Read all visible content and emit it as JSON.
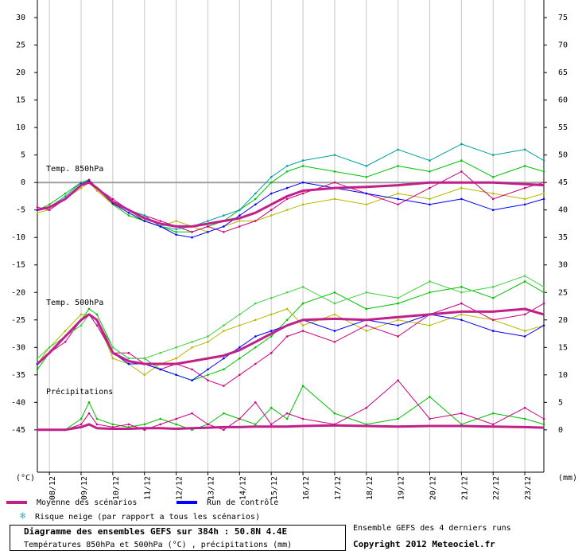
{
  "chart_data": {
    "type": "line",
    "ylabel": "(°C)",
    "y2label": "(mm)",
    "annotations": [
      "Temp. 850hPa",
      "Temp. 500hPa",
      "Précipitations"
    ],
    "xlim": [
      -0.38,
      15.6
    ],
    "xticks": [
      {
        "value": 0,
        "label": "08/12"
      },
      {
        "value": 1,
        "label": "09/12"
      },
      {
        "value": 2,
        "label": "10/12"
      },
      {
        "value": 3,
        "label": "11/12"
      },
      {
        "value": 4,
        "label": "12/12"
      },
      {
        "value": 5,
        "label": "13/12"
      },
      {
        "value": 6,
        "label": "14/12"
      },
      {
        "value": 7,
        "label": "15/12"
      },
      {
        "value": 8,
        "label": "16/12"
      },
      {
        "value": 9,
        "label": "17/12"
      },
      {
        "value": 10,
        "label": "18/12"
      },
      {
        "value": 11,
        "label": "19/12"
      },
      {
        "value": 12,
        "label": "20/12"
      },
      {
        "value": 13,
        "label": "21/12"
      },
      {
        "value": 14,
        "label": "22/12"
      },
      {
        "value": 15,
        "label": "23/12"
      }
    ],
    "ylim": [
      -52.7,
      33.2
    ],
    "yticks": [
      30,
      25,
      20,
      15,
      10,
      5,
      0,
      -5,
      -10,
      -15,
      -20,
      -25,
      -30,
      -35,
      -40,
      -45
    ],
    "y2lim": [
      -7.7,
      78.2
    ],
    "y2ticks": [
      75,
      70,
      65,
      60,
      55,
      50,
      45,
      40,
      35,
      30,
      25,
      20,
      15,
      10,
      5,
      0
    ],
    "reference_lines": [
      0
    ],
    "grid": true,
    "x": [
      -0.38,
      0,
      0.5,
      1,
      1.25,
      1.5,
      2,
      2.5,
      3,
      3.5,
      4,
      4.5,
      5,
      5.5,
      6,
      6.5,
      7,
      7.5,
      8,
      9,
      10,
      11,
      12,
      13,
      14,
      15,
      15.6
    ],
    "series": [
      {
        "color": "#00c000",
        "values": [
          -5,
          -4,
          -2,
          0,
          0.5,
          -1,
          -4,
          -6,
          -7,
          -8,
          -9,
          -9,
          -8,
          -7,
          -5,
          -3,
          0,
          2,
          3,
          2,
          1,
          3,
          2,
          4,
          1,
          3,
          2
        ]
      },
      {
        "color": "#b8b800",
        "values": [
          -5.5,
          -5,
          -3,
          -1,
          0,
          -1.5,
          -4,
          -5,
          -7,
          -8,
          -7,
          -8,
          -9,
          -8,
          -7,
          -7,
          -6,
          -5,
          -4,
          -3,
          -4,
          -2,
          -3,
          -1,
          -2,
          -3,
          -2
        ]
      },
      {
        "color": "#d00080",
        "values": [
          -4.5,
          -5,
          -3,
          -0.5,
          0.5,
          -1,
          -3,
          -5,
          -6,
          -7,
          -8,
          -9,
          -8,
          -9,
          -8,
          -7,
          -5,
          -3,
          -2,
          0,
          -2,
          -4,
          -1,
          2,
          -3,
          -1,
          0
        ]
      },
      {
        "color": "#00a0a0",
        "values": [
          -5,
          -4.5,
          -2.5,
          0,
          0.2,
          -1,
          -3.5,
          -5,
          -6,
          -8,
          -8.5,
          -8,
          -7,
          -6,
          -5,
          -2,
          1,
          3,
          4,
          5,
          3,
          6,
          4,
          7,
          5,
          6,
          4
        ]
      },
      {
        "color": "#00c000",
        "values": [
          -34,
          -31,
          -28,
          -25,
          -23,
          -24,
          -30,
          -32,
          -32,
          -34,
          -35,
          -36,
          -35,
          -34,
          -32,
          -30,
          -28,
          -25,
          -22,
          -20,
          -23,
          -22,
          -20,
          -19,
          -21,
          -18,
          -20
        ]
      },
      {
        "color": "#b8b800",
        "values": [
          -33,
          -30,
          -27,
          -24,
          -24,
          -25,
          -32,
          -33,
          -35,
          -33,
          -32,
          -30,
          -29,
          -27,
          -26,
          -25,
          -24,
          -23,
          -26,
          -24,
          -27,
          -25,
          -26,
          -24,
          -25,
          -27,
          -26
        ]
      },
      {
        "color": "#d00080",
        "values": [
          -33,
          -31,
          -29,
          -25,
          -24,
          -26,
          -31,
          -31,
          -33,
          -34,
          -33,
          -34,
          -36,
          -37,
          -35,
          -33,
          -31,
          -28,
          -27,
          -29,
          -26,
          -28,
          -24,
          -22,
          -25,
          -24,
          -22
        ]
      },
      {
        "color": "#40d040",
        "values": [
          -32,
          -30,
          -28,
          -26,
          -24,
          -25,
          -30,
          -32,
          -32,
          -31,
          -30,
          -29,
          -28,
          -26,
          -24,
          -22,
          -21,
          -20,
          -19,
          -22,
          -20,
          -21,
          -18,
          -20,
          -19,
          -17,
          -19
        ]
      },
      {
        "color": "#00c000",
        "axis": "y2",
        "values": [
          0,
          0,
          0,
          2,
          5,
          2,
          1,
          0.5,
          1,
          2,
          1,
          0,
          1,
          3,
          2,
          1,
          4,
          2,
          8,
          3,
          1,
          2,
          6,
          1,
          3,
          2,
          1
        ]
      },
      {
        "color": "#d00080",
        "axis": "y2",
        "values": [
          0,
          0,
          0,
          1,
          3,
          1,
          0.5,
          1,
          0,
          1,
          2,
          3,
          1,
          0,
          2,
          5,
          1,
          3,
          2,
          1,
          4,
          9,
          2,
          3,
          1,
          4,
          2
        ]
      },
      {
        "name": "Run de contrôle",
        "color": "#0000ff",
        "values": [
          -5,
          -4.5,
          -3,
          -0.3,
          0.2,
          -1,
          -3.8,
          -5.5,
          -7,
          -8,
          -9.5,
          -10,
          -9,
          -8,
          -6,
          -4,
          -2,
          -1,
          0,
          -1,
          -2,
          -3,
          -4,
          -3,
          -5,
          -4,
          -3
        ]
      },
      {
        "color": "#0000ff",
        "values": [
          -33,
          -31,
          -28,
          -25,
          -24,
          -25,
          -31,
          -33,
          -33,
          -34,
          -35,
          -36,
          -34,
          -32,
          -30,
          -28,
          -27,
          -26,
          -25,
          -27,
          -25,
          -26,
          -24,
          -25,
          -27,
          -28,
          -26
        ]
      },
      {
        "name": "Moyenne des scénarios",
        "color": "#c0208a",
        "line_width": 3,
        "values": [
          -5,
          -4.5,
          -3,
          -0.5,
          0,
          -1,
          -3.5,
          -5,
          -6.5,
          -7.5,
          -8,
          -8,
          -7.5,
          -7,
          -6.5,
          -5.5,
          -4,
          -2.5,
          -1.5,
          -1,
          -0.8,
          -0.5,
          0,
          0,
          0,
          -0.3,
          -0.5
        ]
      },
      {
        "color": "#c0208a",
        "line_width": 3,
        "values": [
          -33,
          -31,
          -28,
          -25,
          -24,
          -25,
          -31,
          -32.5,
          -33,
          -33,
          -33,
          -32.5,
          -32,
          -31.5,
          -30.5,
          -29,
          -27.5,
          -26,
          -25,
          -24.8,
          -25,
          -24.5,
          -24,
          -23.5,
          -23.5,
          -23,
          -24
        ]
      },
      {
        "color": "#c0208a",
        "line_width": 3,
        "axis": "y2",
        "values": [
          0,
          0,
          0,
          0.5,
          1,
          0.3,
          0.2,
          0.2,
          0.3,
          0.3,
          0.2,
          0.3,
          0.4,
          0.5,
          0.5,
          0.6,
          0.6,
          0.6,
          0.7,
          0.8,
          0.7,
          0.6,
          0.7,
          0.7,
          0.6,
          0.5,
          0.4
        ]
      }
    ],
    "snow_legend": "Risque neige (par rapport a tous les scénarios)",
    "footer": {
      "title": "Diagramme des ensembles GEFS sur 384h : 50.8N 4.4E",
      "subtitle": "Températures 850hPa et 500hPa (°C) , précipitations (mm)",
      "runs": "Ensemble GEFS des 4 derniers runs",
      "copyright": "Copyright 2012 Meteociel.fr"
    }
  }
}
